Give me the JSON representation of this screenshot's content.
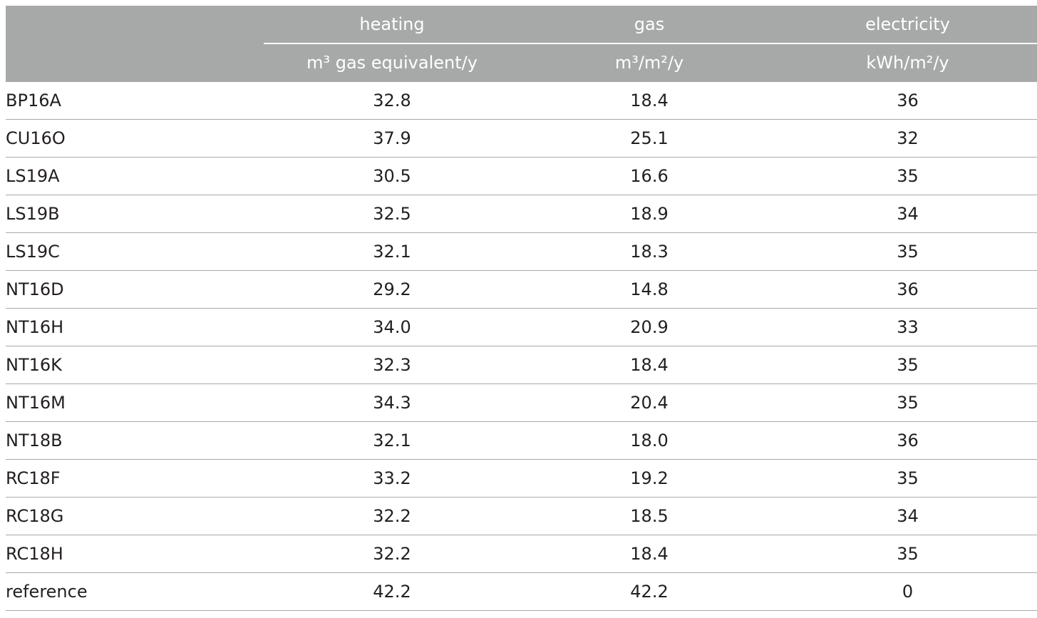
{
  "header": {
    "columns": [
      {
        "label": "heating",
        "unit": "m³ gas equivalent/y"
      },
      {
        "label": "gas",
        "unit": "m³/m²/y"
      },
      {
        "label": "electricity",
        "unit": "kWh/m²/y"
      }
    ]
  },
  "rows": [
    {
      "name": "BP16A",
      "heating": "32.8",
      "gas": "18.4",
      "electricity": "36"
    },
    {
      "name": "CU16O",
      "heating": "37.9",
      "gas": "25.1",
      "electricity": "32"
    },
    {
      "name": "LS19A",
      "heating": "30.5",
      "gas": "16.6",
      "electricity": "35"
    },
    {
      "name": "LS19B",
      "heating": "32.5",
      "gas": "18.9",
      "electricity": "34"
    },
    {
      "name": "LS19C",
      "heating": "32.1",
      "gas": "18.3",
      "electricity": "35"
    },
    {
      "name": "NT16D",
      "heating": "29.2",
      "gas": "14.8",
      "electricity": "36"
    },
    {
      "name": "NT16H",
      "heating": "34.0",
      "gas": "20.9",
      "electricity": "33"
    },
    {
      "name": "NT16K",
      "heating": "32.3",
      "gas": "18.4",
      "electricity": "35"
    },
    {
      "name": "NT16M",
      "heating": "34.3",
      "gas": "20.4",
      "electricity": "35"
    },
    {
      "name": "NT18B",
      "heating": "32.1",
      "gas": "18.0",
      "electricity": "36"
    },
    {
      "name": "RC18F",
      "heating": "33.2",
      "gas": "19.2",
      "electricity": "35"
    },
    {
      "name": "RC18G",
      "heating": "32.2",
      "gas": "18.5",
      "electricity": "34"
    },
    {
      "name": "RC18H",
      "heating": "32.2",
      "gas": "18.4",
      "electricity": "35"
    },
    {
      "name": "reference",
      "heating": "42.2",
      "gas": "42.2",
      "electricity": "0"
    }
  ],
  "colors": {
    "header_bg": "#a7a9a8",
    "header_text": "#ffffff",
    "body_text": "#231f20",
    "row_border": "#a7a9a8"
  }
}
